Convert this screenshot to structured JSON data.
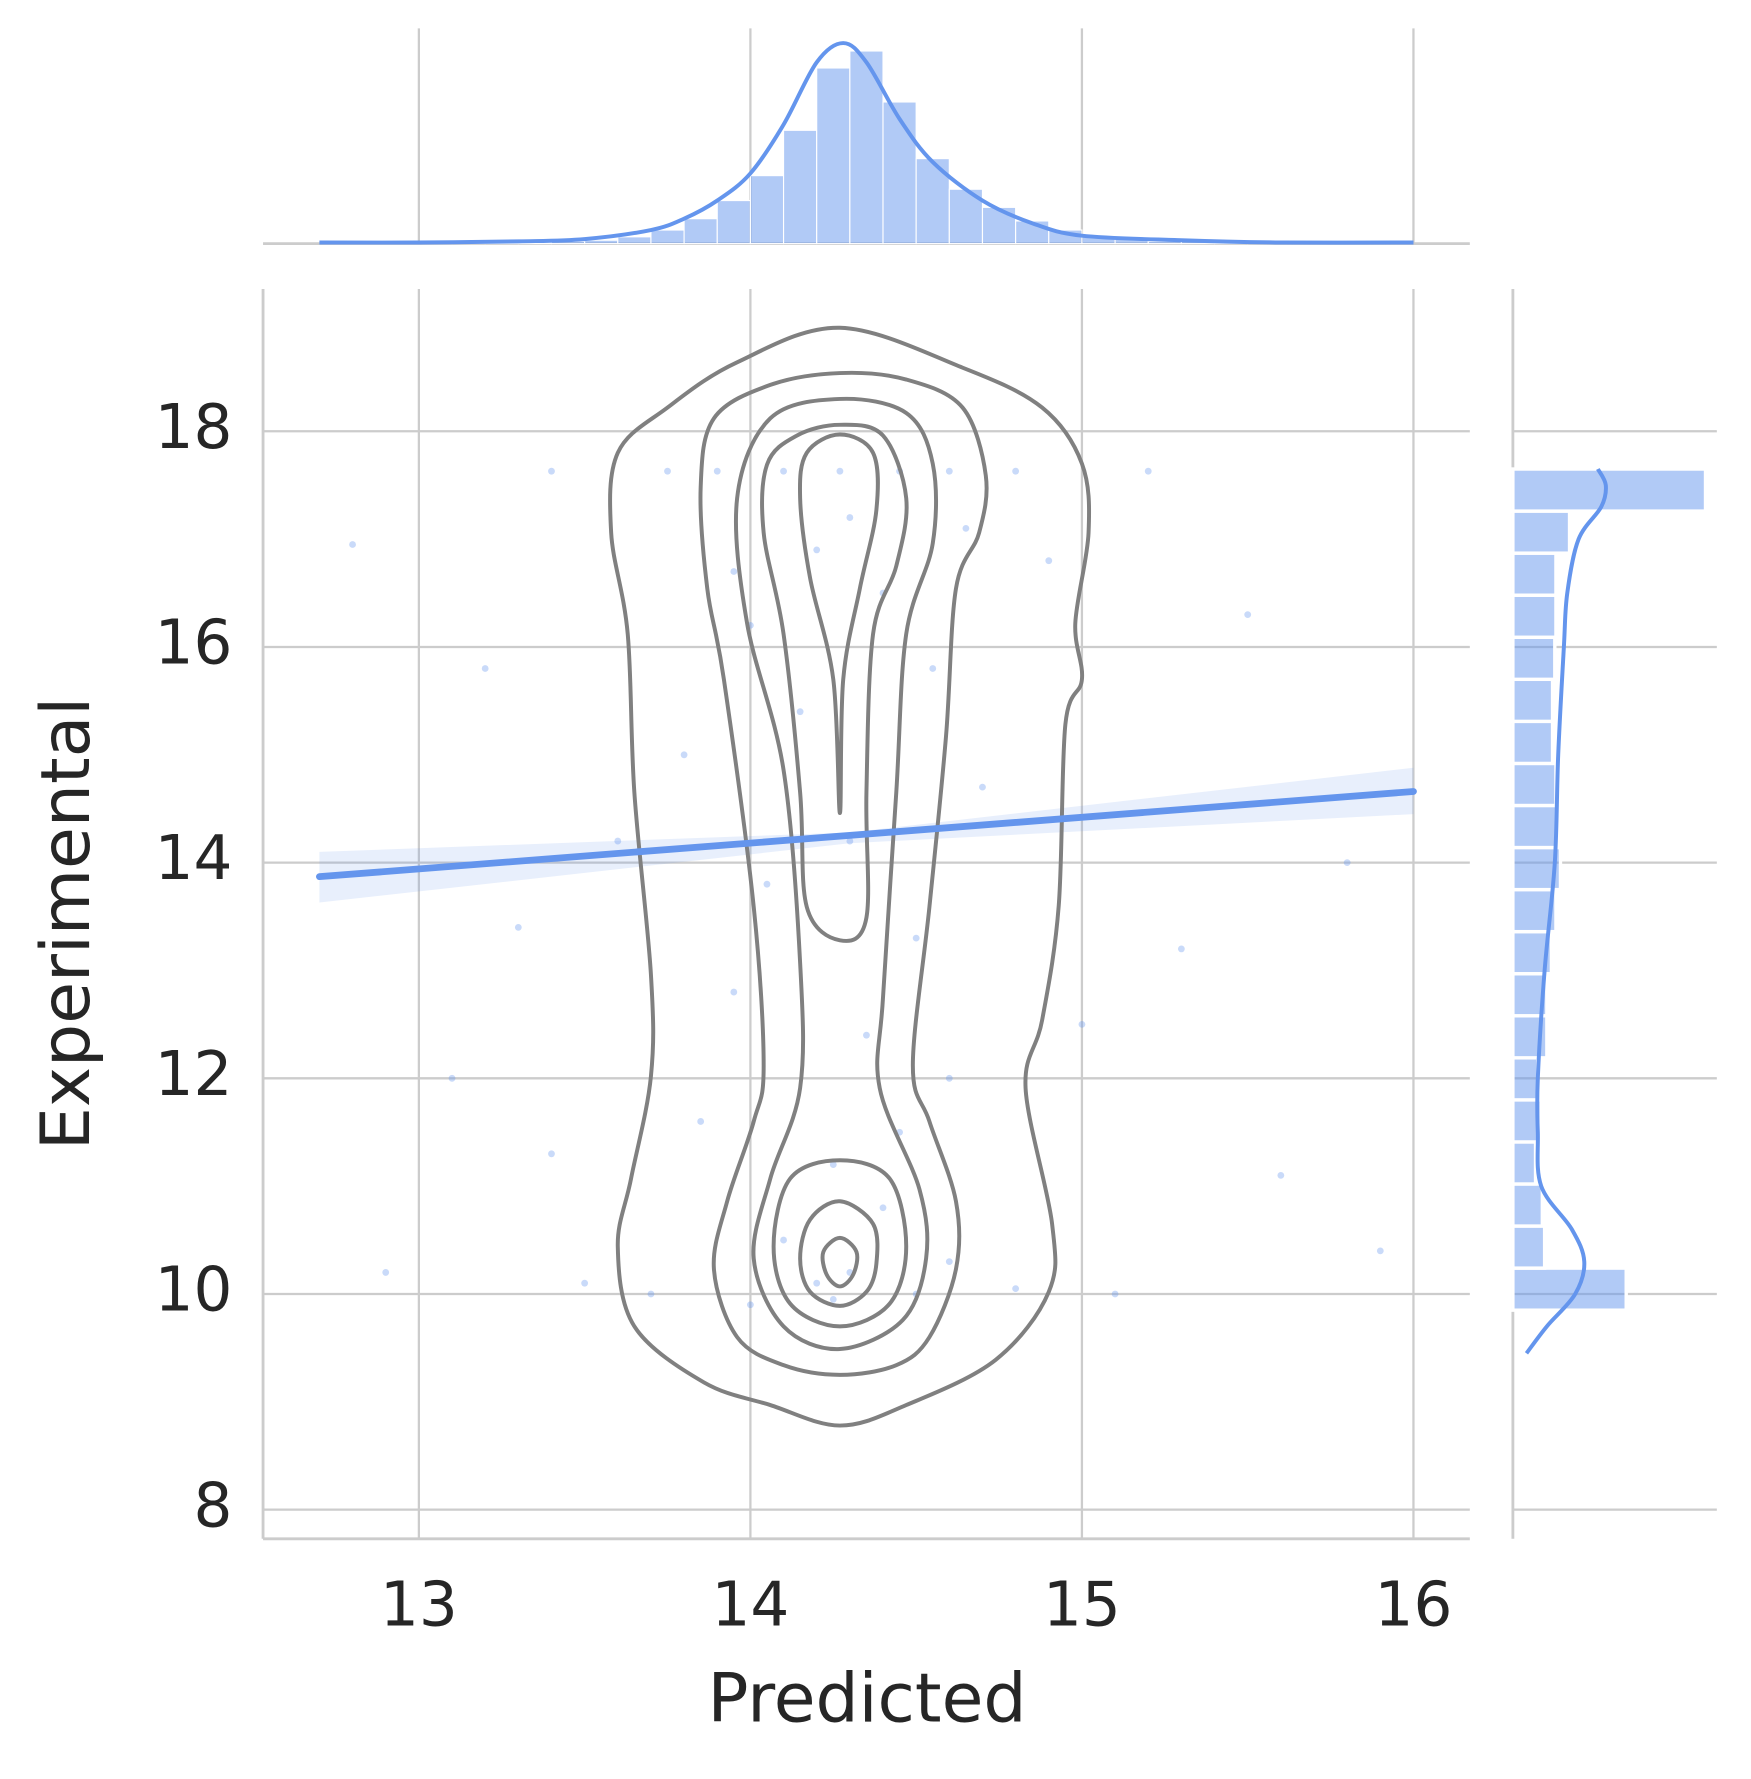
{
  "chart_data": [
    {
      "type": "scatter",
      "xlabel": "Predicted",
      "ylabel": "Experimental",
      "xlim": [
        12.53,
        16.17
      ],
      "ylim": [
        7.73,
        19.32
      ],
      "xticks": [
        13,
        14,
        15,
        16
      ],
      "yticks": [
        8,
        10,
        12,
        14,
        16,
        18
      ],
      "grid": true,
      "color": "#6495ed",
      "x": [
        14.27,
        14.1,
        14.45,
        13.9,
        14.6,
        13.75,
        14.8,
        15.2,
        13.4,
        14.3,
        14.2,
        14.4,
        14.0,
        14.55,
        14.15,
        13.8,
        14.7,
        14.3,
        14.05,
        14.5,
        13.95,
        14.35,
        14.6,
        13.85,
        14.25,
        14.4,
        14.1,
        14.3,
        14.2,
        14.5,
        13.7,
        14.8,
        13.5,
        15.1,
        14.25,
        12.8,
        13.2,
        15.5,
        15.8,
        13.1,
        15.3,
        13.4,
        15.6,
        12.9,
        15.9,
        14.9,
        13.6,
        15.0,
        13.3,
        14.65,
        13.95,
        14.45,
        14.0,
        14.6
      ],
      "y": [
        17.63,
        17.63,
        17.63,
        17.63,
        17.63,
        17.63,
        17.63,
        17.63,
        17.63,
        17.2,
        16.9,
        16.5,
        16.2,
        15.8,
        15.4,
        15.0,
        14.7,
        14.2,
        13.8,
        13.3,
        12.8,
        12.4,
        12.0,
        11.6,
        11.2,
        10.8,
        10.5,
        10.2,
        10.1,
        10.0,
        10.0,
        10.05,
        10.1,
        10.0,
        9.95,
        16.95,
        15.8,
        16.3,
        14.0,
        12.0,
        13.2,
        11.3,
        11.1,
        10.2,
        10.4,
        16.8,
        14.2,
        12.5,
        13.4,
        17.1,
        16.7,
        11.5,
        9.9,
        10.3
      ],
      "regression": {
        "x": [
          12.7,
          16.0
        ],
        "y": [
          13.87,
          14.66
        ],
        "band_x": [
          12.7,
          14.3,
          16.0
        ],
        "band_upper": [
          14.1,
          14.28,
          14.88
        ],
        "band_lower": [
          13.63,
          14.18,
          14.45
        ]
      },
      "contour_color": "#808080",
      "contours": [
        {
          "x": [
            14.27,
            14.64,
            14.88,
            15.0,
            15.02,
            14.98,
            15.0,
            14.95,
            14.93,
            14.88,
            14.83,
            14.91,
            14.9,
            14.74,
            14.47,
            14.27,
            14.06,
            13.86,
            13.65,
            13.6,
            13.64,
            13.7,
            13.7,
            13.65,
            13.63,
            13.58,
            13.6,
            13.75,
            13.96
          ],
          "y": [
            18.96,
            18.59,
            18.22,
            17.7,
            17.06,
            16.22,
            15.7,
            15.28,
            13.6,
            12.54,
            11.91,
            10.65,
            10.02,
            9.39,
            8.97,
            8.78,
            8.97,
            9.18,
            9.7,
            10.44,
            11.07,
            12.02,
            12.96,
            14.65,
            16.12,
            17.06,
            17.8,
            18.22,
            18.64
          ]
        },
        {
          "x": [
            14.27,
            14.47,
            14.64,
            14.71,
            14.69,
            14.62,
            14.59,
            14.54,
            14.49,
            14.54,
            14.62,
            14.62,
            14.54,
            14.44,
            14.27,
            14.1,
            13.96,
            13.89,
            13.93,
            14.01,
            14.04,
            14.01,
            13.92,
            13.87,
            13.85,
            13.89,
            14.06
          ],
          "y": [
            18.54,
            18.48,
            18.22,
            17.59,
            17.06,
            16.54,
            15.17,
            13.59,
            12.12,
            11.6,
            10.86,
            10.23,
            9.6,
            9.34,
            9.25,
            9.34,
            9.6,
            10.23,
            10.86,
            11.6,
            12.12,
            13.59,
            15.7,
            16.54,
            17.48,
            18.12,
            18.43
          ]
        },
        {
          "x": [
            14.27,
            14.47,
            14.55,
            14.55,
            14.47,
            14.44,
            14.4,
            14.39,
            14.51,
            14.53,
            14.46,
            14.27,
            14.1,
            14.01,
            14.06,
            14.15,
            14.15,
            14.1,
            13.99,
            13.96,
            14.06
          ],
          "y": [
            18.3,
            18.17,
            17.7,
            16.96,
            16.12,
            14.65,
            12.75,
            11.91,
            10.97,
            10.33,
            9.76,
            9.49,
            9.7,
            10.33,
            11.07,
            11.91,
            13.07,
            14.86,
            16.22,
            17.38,
            18.12
          ]
        },
        {
          "x": [
            14.27,
            14.4,
            14.47,
            14.44,
            14.37,
            14.35,
            14.35,
            14.27,
            14.17,
            14.15,
            14.1,
            14.04,
            14.05,
            14.14
          ],
          "y": [
            18.06,
            17.96,
            17.38,
            16.75,
            16.12,
            14.65,
            13.49,
            13.28,
            13.59,
            14.65,
            16.12,
            17.06,
            17.69,
            17.96
          ]
        },
        {
          "x": [
            14.27,
            14.42,
            14.47,
            14.42,
            14.27,
            14.12,
            14.07,
            14.12
          ],
          "y": [
            11.24,
            11.07,
            10.44,
            9.91,
            9.7,
            9.91,
            10.44,
            11.07
          ]
        },
        {
          "x": [
            14.27,
            14.37,
            14.38,
            14.33,
            14.28,
            14.27,
            14.25,
            14.18,
            14.15,
            14.17
          ],
          "y": [
            17.97,
            17.8,
            17.27,
            16.54,
            15.7,
            14.46,
            15.7,
            16.64,
            17.38,
            17.8
          ]
        },
        {
          "x": [
            14.27,
            14.37,
            14.38,
            14.35,
            14.27,
            14.18,
            14.15,
            14.18
          ],
          "y": [
            10.86,
            10.65,
            10.28,
            10.02,
            9.89,
            10.02,
            10.33,
            10.69
          ]
        },
        {
          "x": [
            14.27,
            14.32,
            14.31,
            14.27,
            14.23,
            14.22
          ],
          "y": [
            10.52,
            10.39,
            10.18,
            10.07,
            10.18,
            10.39
          ]
        }
      ]
    },
    {
      "type": "histogram",
      "orientation": "vertical",
      "color": "#6495ed",
      "ylim": [
        0,
        180
      ],
      "bins": [
        12.7,
        12.8,
        12.9,
        13.0,
        13.1,
        13.2,
        13.3,
        13.4,
        13.5,
        13.6,
        13.7,
        13.8,
        13.9,
        14.0,
        14.1,
        14.2,
        14.3,
        14.4,
        14.5,
        14.6,
        14.7,
        14.8,
        14.9,
        15.0,
        15.1,
        15.2,
        15.3,
        15.4,
        15.5,
        15.6,
        15.7,
        15.8,
        15.9,
        16.0
      ],
      "counts": [
        0,
        0,
        0,
        1,
        1,
        1,
        1,
        2,
        3,
        6,
        12,
        22,
        38,
        60,
        100,
        155,
        170,
        125,
        75,
        48,
        32,
        20,
        12,
        6,
        4,
        2,
        2,
        1,
        1,
        1,
        1,
        0,
        0
      ],
      "kde": {
        "x": [
          12.7,
          13.0,
          13.3,
          13.5,
          13.7,
          13.8,
          13.9,
          14.0,
          14.1,
          14.2,
          14.28,
          14.35,
          14.45,
          14.55,
          14.7,
          14.85,
          15.0,
          15.3,
          15.6,
          16.0
        ],
        "y": [
          1,
          1,
          2,
          4,
          12,
          22,
          38,
          62,
          105,
          160,
          177,
          160,
          110,
          72,
          38,
          18,
          7,
          3,
          1,
          1
        ]
      }
    },
    {
      "type": "histogram",
      "orientation": "horizontal",
      "color": "#6495ed",
      "xlim": [
        0,
        180
      ],
      "bins": [
        9.85,
        10.24,
        10.63,
        11.02,
        11.41,
        11.8,
        12.19,
        12.58,
        12.97,
        13.36,
        13.75,
        14.14,
        14.53,
        14.92,
        15.31,
        15.7,
        16.09,
        16.48,
        16.87,
        17.26,
        17.65
      ],
      "counts": [
        100,
        28,
        26,
        20,
        25,
        22,
        30,
        30,
        34,
        38,
        42,
        40,
        38,
        35,
        35,
        37,
        38,
        38,
        50,
        170
      ],
      "kde": {
        "y": [
          9.45,
          9.7,
          10.0,
          10.3,
          10.6,
          11.0,
          11.5,
          12.0,
          13.0,
          14.0,
          15.0,
          16.0,
          16.5,
          17.0,
          17.3,
          17.5,
          17.65
        ],
        "x": [
          12,
          30,
          55,
          63,
          52,
          25,
          22,
          22,
          28,
          37,
          40,
          45,
          48,
          58,
          78,
          82,
          75
        ]
      }
    }
  ]
}
